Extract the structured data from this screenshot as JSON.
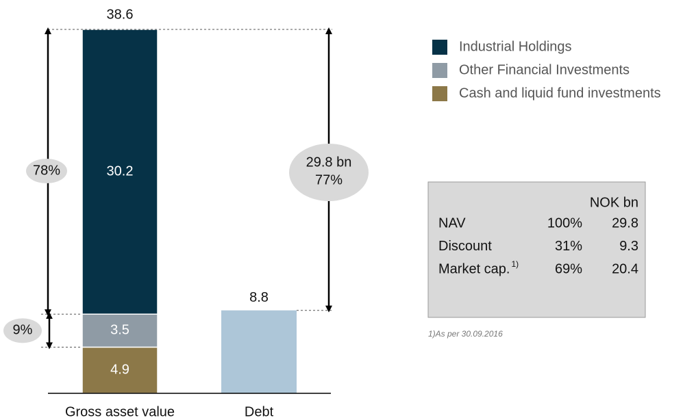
{
  "chart_data": {
    "type": "stacked_bar",
    "categories": [
      "Gross asset value",
      "Debt"
    ],
    "series": [
      {
        "name": "Industrial Holdings",
        "color": "#063247",
        "values": [
          30.2,
          null
        ]
      },
      {
        "name": "Other Financial Investments",
        "color": "#8f9ba5",
        "values": [
          3.5,
          null
        ]
      },
      {
        "name": "Cash and liquid fund investments",
        "color": "#8c7848",
        "values": [
          4.9,
          null
        ]
      }
    ],
    "debt": {
      "value": 8.8,
      "color": "#adc6d8"
    },
    "total_label": 38.6,
    "ylim": [
      0,
      38.6
    ],
    "annotations": {
      "holdings_share": "78%",
      "other_share": "9%",
      "nav_lines": [
        "29.8 bn",
        "77%"
      ]
    }
  },
  "table": {
    "header": "NOK bn",
    "rows": [
      {
        "label": "NAV",
        "share": "100%",
        "value": "29.8"
      },
      {
        "label": "Discount",
        "share": "31%",
        "value": "9.3"
      },
      {
        "label": "Market cap.",
        "sup": "1)",
        "share": "69%",
        "value": "20.4"
      }
    ],
    "footnote": "1)As per 30.09.2016"
  }
}
